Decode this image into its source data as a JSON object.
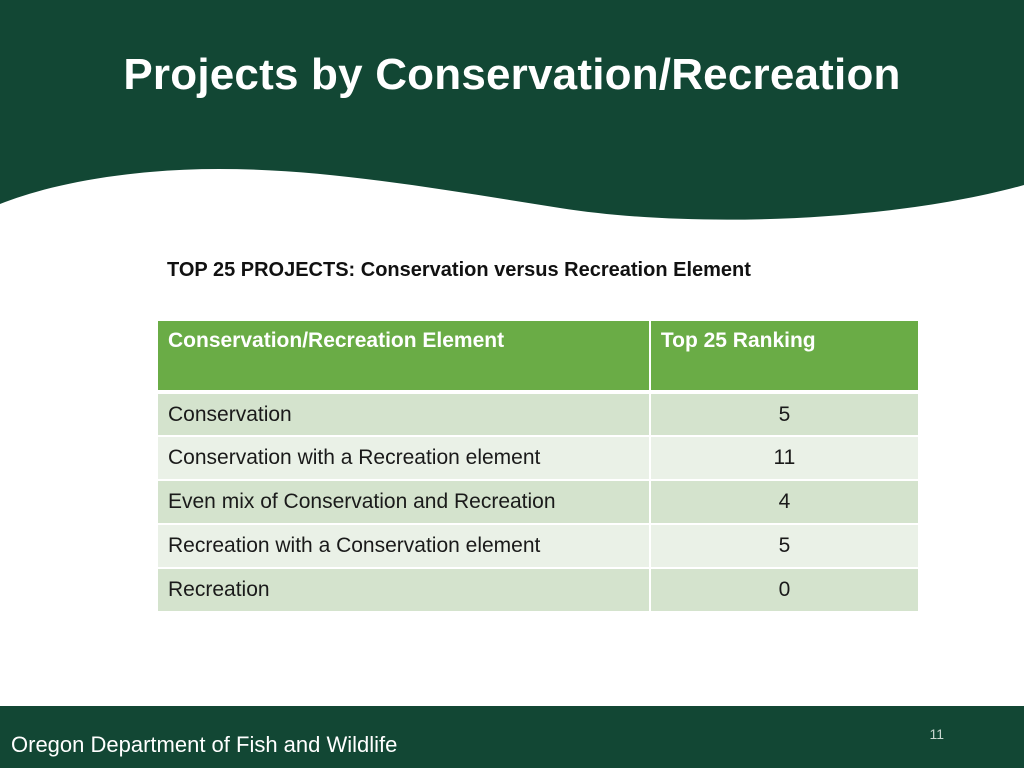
{
  "slide": {
    "title": "Projects by Conservation/Recreation",
    "colors": {
      "header_green": "#124734",
      "table_header_green": "#6aac46",
      "row_dark": "#d4e3cd",
      "row_light": "#eaf1e7"
    }
  },
  "table": {
    "caption": "TOP 25 PROJECTS: Conservation versus Recreation Element",
    "headers": {
      "element": "Conservation/Recreation  Element",
      "ranking": "Top 25 Ranking"
    },
    "rows": [
      {
        "element": "Conservation",
        "ranking": "5"
      },
      {
        "element": "Conservation with a Recreation element",
        "ranking": "11"
      },
      {
        "element": "Even mix of Conservation and Recreation",
        "ranking": "4"
      },
      {
        "element": "Recreation with a Conservation element",
        "ranking": "5"
      },
      {
        "element": "Recreation",
        "ranking": "0"
      }
    ]
  },
  "footer": {
    "organization": "Oregon Department of Fish and Wildlife",
    "page_number": "11"
  }
}
